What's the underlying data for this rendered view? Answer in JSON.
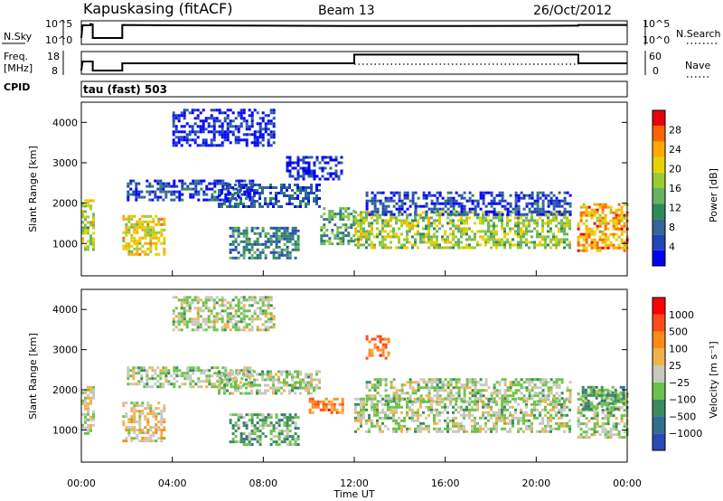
{
  "header": {
    "station": "Kapuskasing (fitACF)",
    "beam": "Beam 13",
    "date": "26/Oct/2012"
  },
  "chart_data": [
    {
      "type": "line",
      "panel": "sky-noise",
      "ylabel": "N.Sky",
      "ylabel_right": "N.Search",
      "left_ticks": [
        "10^5",
        "10^0"
      ],
      "right_ticks": [
        "10^5",
        "10^0"
      ],
      "x_range_hours": [
        0,
        24
      ],
      "series": [
        {
          "name": "N.Sky",
          "style": "solid",
          "segments": [
            [
              [
                0.0,
                0.2
              ],
              [
                0.05,
                0.9
              ],
              [
                0.4,
                0.9
              ],
              [
                0.4,
                0.97
              ],
              [
                0.5,
                0.95
              ],
              [
                0.5,
                0.2
              ],
              [
                1.8,
                0.2
              ],
              [
                1.8,
                0.92
              ],
              [
                4,
                0.9
              ],
              [
                8,
                0.88
              ],
              [
                12,
                0.86
              ],
              [
                16,
                0.86
              ],
              [
                20,
                0.87
              ],
              [
                21.85,
                0.88
              ],
              [
                21.85,
                0.92
              ],
              [
                24,
                0.92
              ]
            ]
          ]
        },
        {
          "name": "N.Search",
          "style": "dotted",
          "segments": []
        }
      ]
    },
    {
      "type": "line",
      "panel": "frequency",
      "ylabel": "Freq.\n[MHz]",
      "ylabel_right": "Nave",
      "left_ticks": [
        "18",
        "8"
      ],
      "right_ticks": [
        "60",
        "0"
      ],
      "x_range_hours": [
        0,
        24
      ],
      "series": [
        {
          "name": "Freq.",
          "style": "solid",
          "segments": [
            [
              [
                0.0,
                0.1
              ],
              [
                0.05,
                0.6
              ],
              [
                0.5,
                0.6
              ],
              [
                0.5,
                0.1
              ],
              [
                1.8,
                0.1
              ],
              [
                1.8,
                0.5
              ],
              [
                12.0,
                0.5
              ],
              [
                12.0,
                0.98
              ],
              [
                21.85,
                0.98
              ],
              [
                21.85,
                0.5
              ],
              [
                24,
                0.5
              ]
            ]
          ]
        },
        {
          "name": "Nave",
          "style": "dotted",
          "segments": [
            [
              [
                12.0,
                0.45
              ],
              [
                21.85,
                0.45
              ]
            ]
          ]
        }
      ]
    },
    {
      "type": "heatmap",
      "panel": "cpid",
      "label": "CPID",
      "annotation": "tau (fast) 503"
    },
    {
      "type": "heatmap",
      "panel": "power",
      "ylabel": "Slant Range [km]",
      "yticks": [
        1000,
        2000,
        3000,
        4000
      ],
      "ylim": [
        200,
        4500
      ],
      "colorbar": {
        "label": "Power [dB]",
        "ticks": [
          "28",
          "24",
          "20",
          "16",
          "12",
          "8",
          "4"
        ],
        "colors": [
          "#0000ff",
          "#2244bb",
          "#336699",
          "#2e8b57",
          "#66b266",
          "#9acd32",
          "#e6d200",
          "#ffaa00",
          "#ff6600",
          "#e8000b"
        ]
      },
      "clusters": [
        {
          "t": [
            0.0,
            0.5
          ],
          "r": [
            800,
            2100
          ],
          "level": 0.55
        },
        {
          "t": [
            1.8,
            3.6
          ],
          "r": [
            700,
            1700
          ],
          "level": 0.65
        },
        {
          "t": [
            2.0,
            7.5
          ],
          "r": [
            2100,
            2600
          ],
          "level": 0.15
        },
        {
          "t": [
            6.0,
            10.5
          ],
          "r": [
            1900,
            2500
          ],
          "level": 0.2
        },
        {
          "t": [
            10.5,
            12.0
          ],
          "r": [
            1000,
            1900
          ],
          "level": 0.4
        },
        {
          "t": [
            12.0,
            21.5
          ],
          "r": [
            900,
            1800
          ],
          "level": 0.55
        },
        {
          "t": [
            12.5,
            21.5
          ],
          "r": [
            1700,
            2300
          ],
          "level": 0.15
        },
        {
          "t": [
            21.8,
            24.0
          ],
          "r": [
            800,
            2000
          ],
          "level": 0.75
        },
        {
          "t": [
            4.0,
            8.5
          ],
          "r": [
            3500,
            4400
          ],
          "level": 0.08
        },
        {
          "t": [
            6.5,
            9.5
          ],
          "r": [
            600,
            1400
          ],
          "level": 0.3
        },
        {
          "t": [
            9.0,
            11.5
          ],
          "r": [
            2600,
            3200
          ],
          "level": 0.1
        }
      ]
    },
    {
      "type": "heatmap",
      "panel": "velocity",
      "ylabel": "Slant Range [km]",
      "yticks": [
        1000,
        2000,
        3000,
        4000
      ],
      "ylim": [
        200,
        4500
      ],
      "xlabel": "Time UT",
      "xticks": [
        "00:00",
        "04:00",
        "08:00",
        "12:00",
        "16:00",
        "20:00",
        "00:00"
      ],
      "xticks_hours": [
        0,
        4,
        8,
        12,
        16,
        20,
        24
      ],
      "colorbar": {
        "label": "Velocity [m s⁻¹]",
        "ticks": [
          "1000",
          "500",
          "100",
          "25",
          "−25",
          "−100",
          "−500",
          "−1000"
        ],
        "colors": [
          "#2a4ab5",
          "#346e8e",
          "#3c8a5e",
          "#6cc24a",
          "#c8c8c0",
          "#f2b24a",
          "#ff8a1a",
          "#ff4a1a",
          "#ff0000"
        ]
      },
      "clusters": [
        {
          "t": [
            0.0,
            0.5
          ],
          "r": [
            800,
            2100
          ],
          "level": 0.5
        },
        {
          "t": [
            1.8,
            3.6
          ],
          "r": [
            700,
            1700
          ],
          "level": 0.55
        },
        {
          "t": [
            2.0,
            7.5
          ],
          "r": [
            2100,
            2600
          ],
          "level": 0.45
        },
        {
          "t": [
            6.0,
            10.5
          ],
          "r": [
            1900,
            2500
          ],
          "level": 0.45
        },
        {
          "t": [
            10.0,
            11.5
          ],
          "r": [
            1400,
            1800
          ],
          "level": 0.75
        },
        {
          "t": [
            12.0,
            21.5
          ],
          "r": [
            900,
            1800
          ],
          "level": 0.45
        },
        {
          "t": [
            12.5,
            21.5
          ],
          "r": [
            1700,
            2300
          ],
          "level": 0.45
        },
        {
          "t": [
            21.8,
            24.0
          ],
          "r": [
            800,
            2000
          ],
          "level": 0.45
        },
        {
          "t": [
            22.0,
            23.8
          ],
          "r": [
            1500,
            2100
          ],
          "level": 0.3
        },
        {
          "t": [
            4.0,
            8.5
          ],
          "r": [
            3500,
            4400
          ],
          "level": 0.45
        },
        {
          "t": [
            6.5,
            9.5
          ],
          "r": [
            600,
            1400
          ],
          "level": 0.35
        },
        {
          "t": [
            12.5,
            13.5
          ],
          "r": [
            2800,
            3400
          ],
          "level": 0.75
        }
      ]
    }
  ]
}
